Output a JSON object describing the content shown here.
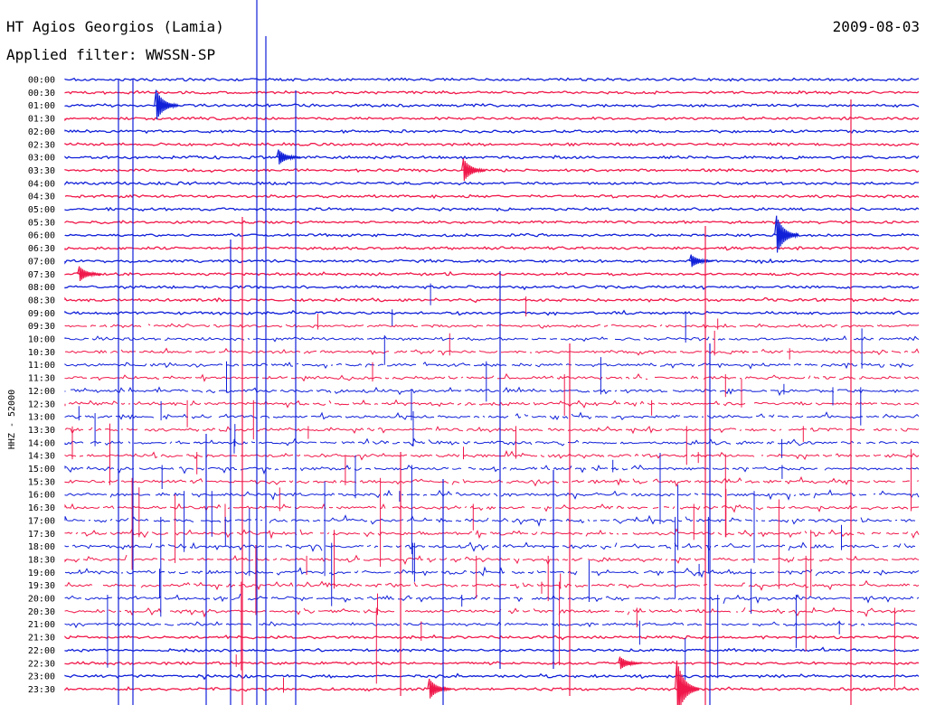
{
  "header": {
    "station": "HT Agios Georgios (Lamia)",
    "date": "2009-08-03",
    "filter": "Applied filter: WWSSN-SP"
  },
  "chart_data": {
    "type": "helicorder",
    "title": "HT Agios Georgios (Lamia)",
    "date": "2009-08-03",
    "filter": "WWSSN-SP",
    "ylabel": "HHZ - 52000",
    "xlabel": "",
    "grid": false,
    "trace_colors": [
      "#1020d8",
      "#f0184a"
    ],
    "rows": [
      {
        "time": "00:00",
        "activity": 0.1
      },
      {
        "time": "00:30",
        "activity": 0.05
      },
      {
        "time": "01:00",
        "activity": 0.1
      },
      {
        "time": "01:30",
        "activity": 0.08
      },
      {
        "time": "02:00",
        "activity": 0.05
      },
      {
        "time": "02:30",
        "activity": 0.12
      },
      {
        "time": "03:00",
        "activity": 0.15
      },
      {
        "time": "03:30",
        "activity": 0.2
      },
      {
        "time": "04:00",
        "activity": 0.15
      },
      {
        "time": "04:30",
        "activity": 0.2
      },
      {
        "time": "05:00",
        "activity": 0.18
      },
      {
        "time": "05:30",
        "activity": 0.18
      },
      {
        "time": "06:00",
        "activity": 0.18
      },
      {
        "time": "06:30",
        "activity": 0.15
      },
      {
        "time": "07:00",
        "activity": 0.2
      },
      {
        "time": "07:30",
        "activity": 0.25
      },
      {
        "time": "08:00",
        "activity": 0.3
      },
      {
        "time": "08:30",
        "activity": 0.35
      },
      {
        "time": "09:00",
        "activity": 0.4
      },
      {
        "time": "09:30",
        "activity": 0.5
      },
      {
        "time": "10:00",
        "activity": 0.6
      },
      {
        "time": "10:30",
        "activity": 0.65
      },
      {
        "time": "11:00",
        "activity": 0.7
      },
      {
        "time": "11:30",
        "activity": 0.75
      },
      {
        "time": "12:00",
        "activity": 0.78
      },
      {
        "time": "12:30",
        "activity": 0.8
      },
      {
        "time": "13:00",
        "activity": 0.8
      },
      {
        "time": "13:30",
        "activity": 0.8
      },
      {
        "time": "14:00",
        "activity": 0.8
      },
      {
        "time": "14:30",
        "activity": 0.8
      },
      {
        "time": "15:00",
        "activity": 0.85
      },
      {
        "time": "15:30",
        "activity": 0.85
      },
      {
        "time": "16:00",
        "activity": 0.88
      },
      {
        "time": "16:30",
        "activity": 0.88
      },
      {
        "time": "17:00",
        "activity": 0.9
      },
      {
        "time": "17:30",
        "activity": 0.9
      },
      {
        "time": "18:00",
        "activity": 0.92
      },
      {
        "time": "18:30",
        "activity": 0.95
      },
      {
        "time": "19:00",
        "activity": 0.95
      },
      {
        "time": "19:30",
        "activity": 0.95
      },
      {
        "time": "20:00",
        "activity": 0.95
      },
      {
        "time": "20:30",
        "activity": 0.95
      },
      {
        "time": "21:00",
        "activity": 0.5
      },
      {
        "time": "21:30",
        "activity": 0.3
      },
      {
        "time": "22:00",
        "activity": 0.25
      },
      {
        "time": "22:30",
        "activity": 0.3
      },
      {
        "time": "23:00",
        "activity": 0.4
      },
      {
        "time": "23:30",
        "activity": 0.3
      }
    ],
    "events": [
      {
        "time": "01:00",
        "offset_min": 3.2,
        "amplitude": 1.2
      },
      {
        "time": "03:00",
        "offset_min": 7.5,
        "amplitude": 0.6
      },
      {
        "time": "03:30",
        "offset_min": 14.0,
        "amplitude": 0.9
      },
      {
        "time": "06:00",
        "offset_min": 25.0,
        "amplitude": 1.5
      },
      {
        "time": "07:30",
        "offset_min": 0.5,
        "amplitude": 0.6
      },
      {
        "time": "07:00",
        "offset_min": 22.0,
        "amplitude": 0.5
      },
      {
        "time": "23:30",
        "offset_min": 21.5,
        "amplitude": 2.2
      },
      {
        "time": "23:30",
        "offset_min": 12.8,
        "amplitude": 0.8
      },
      {
        "time": "22:30",
        "offset_min": 19.5,
        "amplitude": 0.5
      }
    ]
  }
}
